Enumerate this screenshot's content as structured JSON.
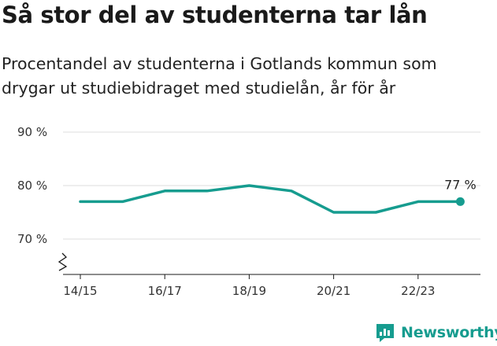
{
  "title": "Så stor del av studenterna tar lån",
  "subtitle": "Procentandel av studenterna i Gotlands kommun som drygar ut studiebidraget med studielån, år för år",
  "brand": {
    "name": "Newsworthy",
    "icon": "newsworthy-logo-icon"
  },
  "colors": {
    "line": "#169c8f",
    "axis": "#1a1a1a",
    "grid": "#dddddd",
    "brand": "#169c8f"
  },
  "chart_data": {
    "type": "line",
    "title": "Så stor del av studenterna tar lån",
    "xlabel": "",
    "ylabel": "",
    "x": [
      "14/15",
      "15/16",
      "16/17",
      "17/18",
      "18/19",
      "19/20",
      "20/21",
      "21/22",
      "22/23",
      "23/24"
    ],
    "x_tick_labels": [
      "14/15",
      "16/17",
      "18/19",
      "20/21",
      "22/23"
    ],
    "series": [
      {
        "values": [
          77,
          77,
          79,
          79,
          80,
          79,
          75,
          75,
          77,
          77
        ]
      }
    ],
    "y_ticks": [
      70,
      80,
      90
    ],
    "y_tick_labels": [
      "70 %",
      "80 %",
      "90 %"
    ],
    "ylim": [
      64,
      90
    ],
    "y_axis_break": true,
    "grid": true,
    "end_label": "77 %"
  }
}
